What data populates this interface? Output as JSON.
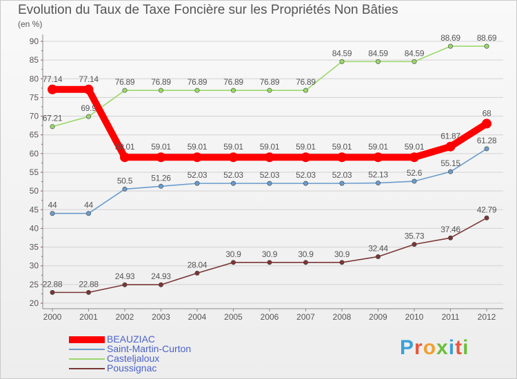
{
  "title": "Evolution du Taux de Taxe Foncière sur les Propriétés Non Bâties",
  "unit_label": "(en %)",
  "logo": {
    "text": "Proxiti",
    "letters": [
      "P",
      "r",
      "o",
      "x",
      "i",
      "t",
      "i"
    ],
    "colors": [
      "#3aa1d8",
      "#e8563c",
      "#f0a030",
      "#6bbf3a",
      "#3aa1d8",
      "#e8563c",
      "#6bbf3a"
    ]
  },
  "chart_data": {
    "type": "line",
    "title": "Evolution du Taux de Taxe Foncière sur les Propriétés Non Bâties",
    "ylabel": "(en %)",
    "xlabel": "",
    "ylim": [
      20,
      90
    ],
    "yticks": [
      20,
      25,
      30,
      35,
      40,
      45,
      50,
      55,
      60,
      65,
      70,
      75,
      80,
      85,
      90
    ],
    "grid": "horizontal",
    "legend_position": "bottom-left",
    "categories": [
      "2000",
      "2001",
      "2002",
      "2003",
      "2004",
      "2005",
      "2006",
      "2007",
      "2008",
      "2009",
      "2010",
      "2011",
      "2012"
    ],
    "series": [
      {
        "name": "BEAUZIAC",
        "color": "#ff0000",
        "emphasis": true,
        "values": [
          77.14,
          77.14,
          59.01,
          59.01,
          59.01,
          59.01,
          59.01,
          59.01,
          59.01,
          59.01,
          59.01,
          61.87,
          68
        ],
        "labels": [
          "77.14",
          "77.14",
          "59.01",
          "59.01",
          "59.01",
          "59.01",
          "59.01",
          "59.01",
          "59.01",
          "59.01",
          "59.01",
          "61.87",
          "68"
        ]
      },
      {
        "name": "Saint-Martin-Curton",
        "color": "#6a9ccc",
        "emphasis": false,
        "values": [
          44,
          44,
          50.5,
          51.26,
          52.03,
          52.03,
          52.03,
          52.03,
          52.03,
          52.13,
          52.6,
          55.15,
          61.28
        ],
        "labels": [
          "44",
          "44",
          "50.5",
          "51.26",
          "52.03",
          "52.03",
          "52.03",
          "52.03",
          "52.03",
          "52.13",
          "52.6",
          "55.15",
          "61.28"
        ]
      },
      {
        "name": "Casteljaloux",
        "color": "#99d86a",
        "emphasis": false,
        "values": [
          67.21,
          69.9,
          76.89,
          76.89,
          76.89,
          76.89,
          76.89,
          76.89,
          84.59,
          84.59,
          84.59,
          88.69,
          88.69
        ],
        "labels": [
          "67.21",
          "69.9",
          "76.89",
          "76.89",
          "76.89",
          "76.89",
          "76.89",
          "76.89",
          "84.59",
          "84.59",
          "84.59",
          "88.69",
          "88.69"
        ]
      },
      {
        "name": "Poussignac",
        "color": "#7a3535",
        "emphasis": false,
        "values": [
          22.88,
          22.88,
          24.93,
          24.93,
          28.04,
          30.9,
          30.9,
          30.9,
          30.9,
          32.44,
          35.73,
          37.46,
          42.79
        ],
        "labels": [
          "22.88",
          "22.88",
          "24.93",
          "24.93",
          "28.04",
          "30.9",
          "30.9",
          "30.9",
          "30.9",
          "32.44",
          "35.73",
          "37.46",
          "42.79"
        ]
      }
    ]
  }
}
